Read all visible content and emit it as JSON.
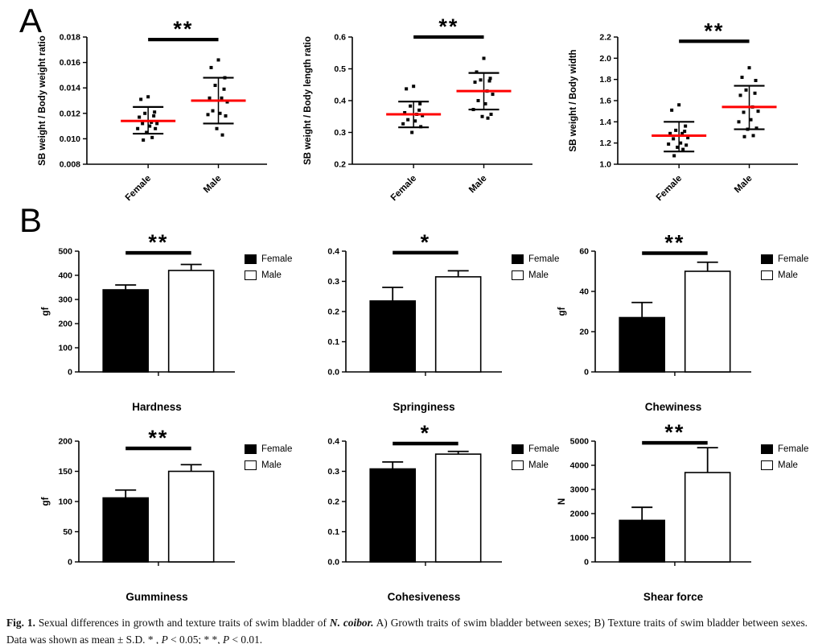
{
  "figure": {
    "panel_a_label": "A",
    "panel_b_label": "B",
    "caption": {
      "segments": [
        {
          "text": "Fig. 1.",
          "style": "bold"
        },
        {
          "text": "  Sexual differences in growth and texture traits of swim bladder of ",
          "style": "normal"
        },
        {
          "text": "N. coibor.",
          "style": "bold-italic"
        },
        {
          "text": " A) Growth traits of swim bladder between sexes; B) Texture traits of swim bladder between sexes. Data was shown as mean ± S.D. * , ",
          "style": "normal"
        },
        {
          "text": "P",
          "style": "italic"
        },
        {
          "text": " < 0.05; * *, ",
          "style": "normal"
        },
        {
          "text": "P",
          "style": "italic"
        },
        {
          "text": " < 0.01.",
          "style": "normal"
        }
      ]
    }
  },
  "colors": {
    "mean_line": "#ff0000",
    "bar_female": "#000000",
    "bar_male": "#ffffff",
    "axis": "#000000"
  },
  "chart_data": [
    {
      "id": "sb-weight-body-weight-ratio",
      "panel": "A",
      "type": "scatter",
      "ylabel": "SB weight / Body weight ratio",
      "ylim": [
        0.008,
        0.018
      ],
      "ytick_step": 0.002,
      "ytick_decimals": 3,
      "categories": [
        "Female",
        "Male"
      ],
      "significance": "**",
      "sig_y": 0.0178,
      "series": [
        {
          "name": "Female",
          "mean": 0.0114,
          "sd_low": 0.0104,
          "sd_high": 0.0125,
          "points": [
            0.0133,
            0.0131,
            0.0121,
            0.012,
            0.0118,
            0.0117,
            0.0113,
            0.0112,
            0.0112,
            0.011,
            0.0108,
            0.0108,
            0.0105,
            0.0101,
            0.0099
          ]
        },
        {
          "name": "Male",
          "mean": 0.013,
          "sd_low": 0.0112,
          "sd_high": 0.0148,
          "points": [
            0.0162,
            0.0156,
            0.0148,
            0.0142,
            0.0139,
            0.0132,
            0.0132,
            0.0129,
            0.0122,
            0.012,
            0.0119,
            0.0118,
            0.0108,
            0.0103
          ]
        }
      ]
    },
    {
      "id": "sb-weight-body-length-ratio",
      "panel": "A",
      "type": "scatter",
      "ylabel": "SB weight / Body length ratio",
      "ylim": [
        0.2,
        0.6
      ],
      "ytick_step": 0.1,
      "ytick_decimals": 1,
      "categories": [
        "Female",
        "Male"
      ],
      "significance": "**",
      "sig_y": 0.6,
      "series": [
        {
          "name": "Female",
          "mean": 0.357,
          "sd_low": 0.316,
          "sd_high": 0.397,
          "points": [
            0.445,
            0.437,
            0.39,
            0.383,
            0.37,
            0.362,
            0.357,
            0.353,
            0.34,
            0.336,
            0.327,
            0.318,
            0.3
          ]
        },
        {
          "name": "Male",
          "mean": 0.43,
          "sd_low": 0.372,
          "sd_high": 0.487,
          "points": [
            0.533,
            0.49,
            0.47,
            0.465,
            0.462,
            0.458,
            0.43,
            0.42,
            0.4,
            0.39,
            0.372,
            0.357,
            0.35,
            0.345
          ]
        }
      ]
    },
    {
      "id": "sb-weight-body-width",
      "panel": "A",
      "type": "scatter",
      "ylabel": "SB weight / Body width",
      "ylim": [
        1.0,
        2.2
      ],
      "ytick_step": 0.2,
      "ytick_decimals": 1,
      "categories": [
        "Female",
        "Male"
      ],
      "significance": "**",
      "sig_y": 2.16,
      "series": [
        {
          "name": "Female",
          "mean": 1.27,
          "sd_low": 1.12,
          "sd_high": 1.4,
          "points": [
            1.56,
            1.51,
            1.36,
            1.32,
            1.31,
            1.29,
            1.29,
            1.25,
            1.24,
            1.2,
            1.19,
            1.18,
            1.16,
            1.14,
            1.08
          ]
        },
        {
          "name": "Male",
          "mean": 1.54,
          "sd_low": 1.33,
          "sd_high": 1.74,
          "points": [
            1.91,
            1.82,
            1.79,
            1.7,
            1.67,
            1.65,
            1.54,
            1.5,
            1.49,
            1.42,
            1.4,
            1.34,
            1.33,
            1.27,
            1.26
          ]
        }
      ]
    },
    {
      "id": "hardness",
      "panel": "B",
      "type": "bar",
      "title": "Hardness",
      "ylabel": "gf",
      "ylim": [
        0,
        500
      ],
      "ytick_step": 100,
      "ytick_decimals": 0,
      "categories": [
        "Female",
        "Male"
      ],
      "values": [
        340,
        420
      ],
      "errors": [
        20,
        25
      ],
      "significance": "**",
      "sig_y": 493,
      "legend": [
        "Female",
        "Male"
      ]
    },
    {
      "id": "springiness",
      "panel": "B",
      "type": "bar",
      "title": "Springiness",
      "ylabel": "",
      "ylim": [
        0,
        0.4
      ],
      "ytick_step": 0.1,
      "ytick_decimals": 1,
      "categories": [
        "Female",
        "Male"
      ],
      "values": [
        0.235,
        0.315
      ],
      "errors": [
        0.045,
        0.02
      ],
      "significance": "*",
      "sig_y": 0.395,
      "legend": [
        "Female",
        "Male"
      ]
    },
    {
      "id": "chewiness",
      "panel": "B",
      "type": "bar",
      "title": "Chewiness",
      "ylabel": "gf",
      "ylim": [
        0,
        60
      ],
      "ytick_step": 20,
      "ytick_decimals": 0,
      "categories": [
        "Female",
        "Male"
      ],
      "values": [
        27,
        50
      ],
      "errors": [
        7.5,
        4.5
      ],
      "significance": "**",
      "sig_y": 59,
      "legend": [
        "Female",
        "Male"
      ]
    },
    {
      "id": "gumminess",
      "panel": "B",
      "type": "bar",
      "title": "Gumminess",
      "ylabel": "gf",
      "ylim": [
        0,
        200
      ],
      "ytick_step": 50,
      "ytick_decimals": 0,
      "categories": [
        "Female",
        "Male"
      ],
      "values": [
        106,
        150
      ],
      "errors": [
        13,
        11
      ],
      "significance": "**",
      "sig_y": 188,
      "legend": [
        "Female",
        "Male"
      ]
    },
    {
      "id": "cohesiveness",
      "panel": "B",
      "type": "bar",
      "title": "Cohesiveness",
      "ylabel": "",
      "ylim": [
        0,
        0.4
      ],
      "ytick_step": 0.1,
      "ytick_decimals": 1,
      "categories": [
        "Female",
        "Male"
      ],
      "values": [
        0.308,
        0.357
      ],
      "errors": [
        0.023,
        0.009
      ],
      "significance": "*",
      "sig_y": 0.392,
      "legend": [
        "Female",
        "Male"
      ]
    },
    {
      "id": "shear-force",
      "panel": "B",
      "type": "bar",
      "title": "Shear force",
      "ylabel": "N",
      "ylim": [
        0,
        5000
      ],
      "ytick_step": 1000,
      "ytick_decimals": 0,
      "categories": [
        "Female",
        "Male"
      ],
      "values": [
        1720,
        3700
      ],
      "errors": [
        540,
        1030
      ],
      "significance": "**",
      "sig_y": 4930,
      "legend": [
        "Female",
        "Male"
      ]
    }
  ]
}
